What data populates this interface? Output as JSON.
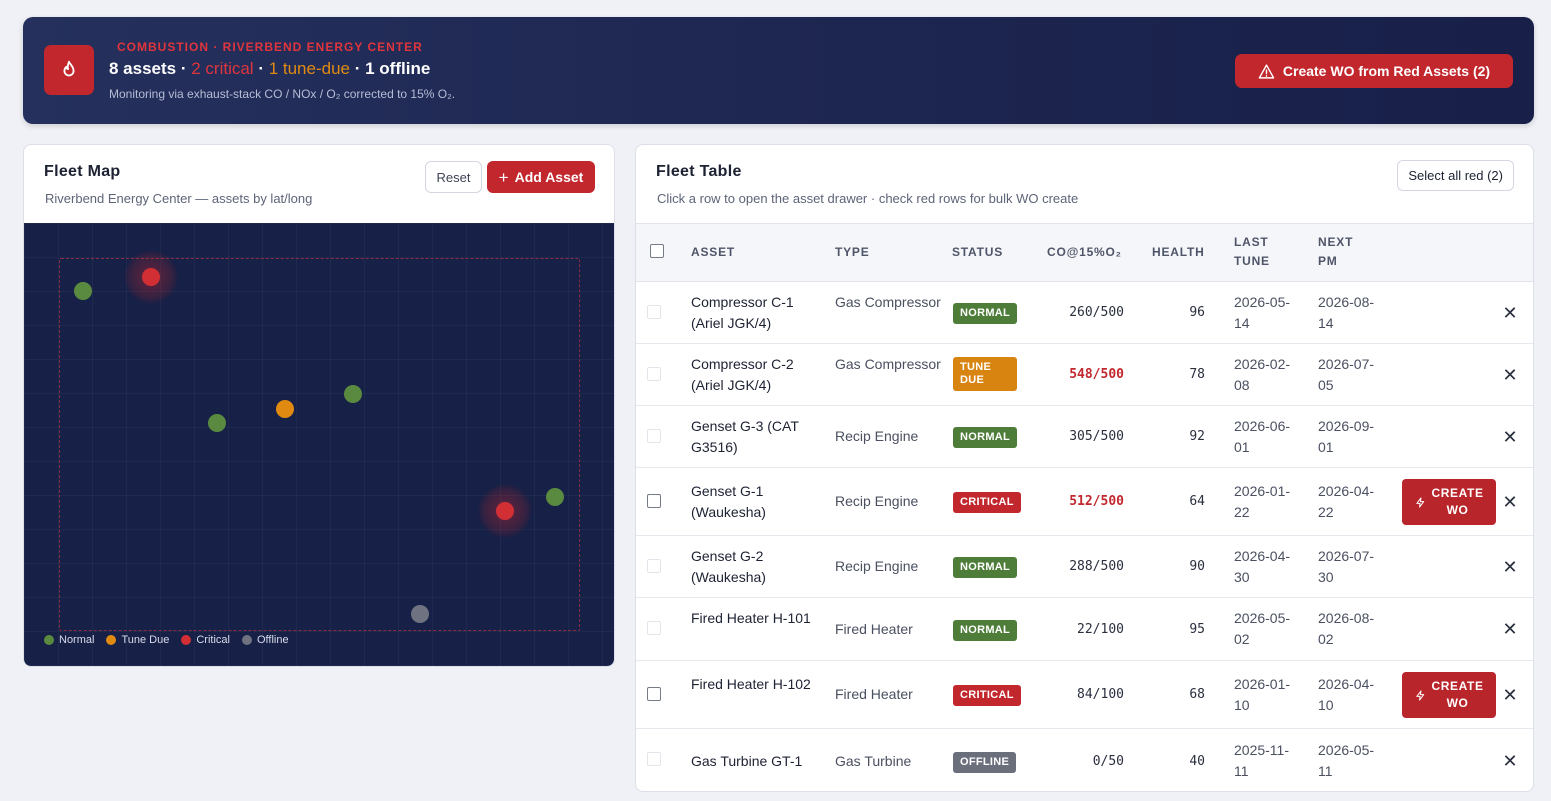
{
  "header": {
    "eyebrow": "COMBUSTION · RIVERBEND ENERGY CENTER",
    "assets_count": "8 assets",
    "sep": " · ",
    "critical": "2 critical",
    "tune_due": "1 tune-due",
    "offline": "1 offline",
    "subtitle": "Monitoring via exhaust-stack CO / NOx / O₂ corrected to 15% O₂.",
    "create_wo_button": "Create WO from Red Assets (2)",
    "icon": "flame-icon"
  },
  "map_panel": {
    "title": "Fleet Map",
    "subtitle": "Riverbend Energy Center — assets by lat/long",
    "reset_button": "Reset",
    "add_button": "Add Asset",
    "legend": [
      {
        "label": "Normal",
        "color": "#5a8a3f"
      },
      {
        "label": "Tune Due",
        "color": "#e08a12"
      },
      {
        "label": "Critical",
        "color": "#d22f35"
      },
      {
        "label": "Offline",
        "color": "#6e7281"
      }
    ]
  },
  "table_panel": {
    "title": "Fleet Table",
    "subtitle": "Click a row to open the asset drawer · check red rows for bulk WO create",
    "select_button": "Select all red (2)",
    "columns": [
      "ASSET",
      "TYPE",
      "STATUS",
      "CO@15%O₂",
      "HEALTH",
      "LAST TUNE",
      "NEXT PM"
    ],
    "create_wo_label": "CREATE WO",
    "rows": [
      {
        "asset": "Compressor C-1 (Ariel JGK/4)",
        "type": "Gas Compressor",
        "status": "NORMAL",
        "co": "260/500",
        "health": "96",
        "last_tune": "2026-05-14",
        "next_pm": "2026-08-14"
      },
      {
        "asset": "Compressor C-2 (Ariel JGK/4)",
        "type": "Gas Compressor",
        "status": "TUNE DUE",
        "co": "548/500",
        "health": "78",
        "last_tune": "2026-02-08",
        "next_pm": "2026-07-05"
      },
      {
        "asset": "Genset G-3 (CAT G3516)",
        "type": "Recip Engine",
        "status": "NORMAL",
        "co": "305/500",
        "health": "92",
        "last_tune": "2026-06-01",
        "next_pm": "2026-09-01"
      },
      {
        "asset": "Genset G-1 (Waukesha)",
        "type": "Recip Engine",
        "status": "CRITICAL",
        "co": "512/500",
        "health": "64",
        "last_tune": "2026-01-22",
        "next_pm": "2026-04-22"
      },
      {
        "asset": "Genset G-2 (Waukesha)",
        "type": "Recip Engine",
        "status": "NORMAL",
        "co": "288/500",
        "health": "90",
        "last_tune": "2026-04-30",
        "next_pm": "2026-07-30"
      },
      {
        "asset": "Fired Heater H-101",
        "type": "Fired Heater",
        "status": "NORMAL",
        "co": "22/100",
        "health": "95",
        "last_tune": "2026-05-02",
        "next_pm": "2026-08-02"
      },
      {
        "asset": "Fired Heater H-102",
        "type": "Fired Heater",
        "status": "CRITICAL",
        "co": "84/100",
        "health": "68",
        "last_tune": "2026-01-10",
        "next_pm": "2026-04-10"
      },
      {
        "asset": "Gas Turbine GT-1",
        "type": "Gas Turbine",
        "status": "OFFLINE",
        "co": "0/50",
        "health": "40",
        "last_tune": "2025-11-11",
        "next_pm": "2026-05-11"
      }
    ]
  }
}
